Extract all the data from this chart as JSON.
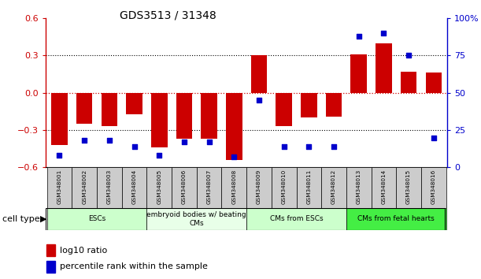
{
  "title": "GDS3513 / 31348",
  "samples": [
    "GSM348001",
    "GSM348002",
    "GSM348003",
    "GSM348004",
    "GSM348005",
    "GSM348006",
    "GSM348007",
    "GSM348008",
    "GSM348009",
    "GSM348010",
    "GSM348011",
    "GSM348012",
    "GSM348013",
    "GSM348014",
    "GSM348015",
    "GSM348016"
  ],
  "log10_ratio": [
    -0.42,
    -0.25,
    -0.27,
    -0.17,
    -0.44,
    -0.37,
    -0.37,
    -0.54,
    0.3,
    -0.27,
    -0.2,
    -0.19,
    0.31,
    0.4,
    0.17,
    0.16
  ],
  "percentile_rank": [
    8,
    18,
    18,
    14,
    8,
    17,
    17,
    7,
    45,
    14,
    14,
    14,
    88,
    90,
    75,
    20
  ],
  "cell_type_groups": [
    {
      "label": "ESCs",
      "start": 0,
      "end": 3,
      "color": "#ccffcc"
    },
    {
      "label": "embryoid bodies w/ beating\nCMs",
      "start": 4,
      "end": 7,
      "color": "#e8ffe8"
    },
    {
      "label": "CMs from ESCs",
      "start": 8,
      "end": 11,
      "color": "#ccffcc"
    },
    {
      "label": "CMs from fetal hearts",
      "start": 12,
      "end": 15,
      "color": "#44ee44"
    }
  ],
  "bar_color": "#cc0000",
  "dot_color": "#0000cc",
  "ylim_left": [
    -0.6,
    0.6
  ],
  "ylim_right": [
    0,
    100
  ],
  "yticks_left": [
    -0.6,
    -0.3,
    0.0,
    0.3,
    0.6
  ],
  "yticks_right": [
    0,
    25,
    50,
    75,
    100
  ],
  "ytick_labels_right": [
    "0",
    "25",
    "50",
    "75",
    "100%"
  ],
  "hline_dotted": [
    0.3,
    0.0,
    -0.3
  ],
  "hline_red_dotted": 0.0,
  "background_color": "#ffffff",
  "legend_items": [
    {
      "label": "log10 ratio",
      "color": "#cc0000"
    },
    {
      "label": "percentile rank within the sample",
      "color": "#0000cc"
    }
  ]
}
